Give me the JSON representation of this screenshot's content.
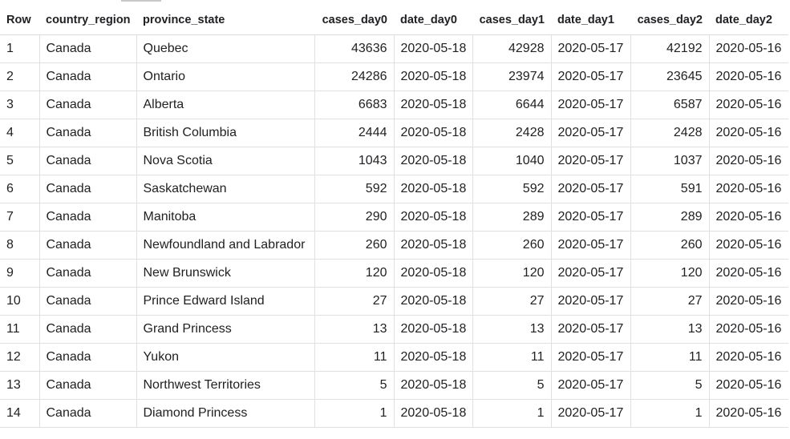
{
  "table": {
    "columns": [
      "Row",
      "country_region",
      "province_state",
      "cases_day0",
      "date_day0",
      "cases_day1",
      "date_day1",
      "cases_day2",
      "date_day2"
    ],
    "rows": [
      [
        "1",
        "Canada",
        "Quebec",
        "43636",
        "2020-05-18",
        "42928",
        "2020-05-17",
        "42192",
        "2020-05-16"
      ],
      [
        "2",
        "Canada",
        "Ontario",
        "24286",
        "2020-05-18",
        "23974",
        "2020-05-17",
        "23645",
        "2020-05-16"
      ],
      [
        "3",
        "Canada",
        "Alberta",
        "6683",
        "2020-05-18",
        "6644",
        "2020-05-17",
        "6587",
        "2020-05-16"
      ],
      [
        "4",
        "Canada",
        "British Columbia",
        "2444",
        "2020-05-18",
        "2428",
        "2020-05-17",
        "2428",
        "2020-05-16"
      ],
      [
        "5",
        "Canada",
        "Nova Scotia",
        "1043",
        "2020-05-18",
        "1040",
        "2020-05-17",
        "1037",
        "2020-05-16"
      ],
      [
        "6",
        "Canada",
        "Saskatchewan",
        "592",
        "2020-05-18",
        "592",
        "2020-05-17",
        "591",
        "2020-05-16"
      ],
      [
        "7",
        "Canada",
        "Manitoba",
        "290",
        "2020-05-18",
        "289",
        "2020-05-17",
        "289",
        "2020-05-16"
      ],
      [
        "8",
        "Canada",
        "Newfoundland and Labrador",
        "260",
        "2020-05-18",
        "260",
        "2020-05-17",
        "260",
        "2020-05-16"
      ],
      [
        "9",
        "Canada",
        "New Brunswick",
        "120",
        "2020-05-18",
        "120",
        "2020-05-17",
        "120",
        "2020-05-16"
      ],
      [
        "10",
        "Canada",
        "Prince Edward Island",
        "27",
        "2020-05-18",
        "27",
        "2020-05-17",
        "27",
        "2020-05-16"
      ],
      [
        "11",
        "Canada",
        "Grand Princess",
        "13",
        "2020-05-18",
        "13",
        "2020-05-17",
        "13",
        "2020-05-16"
      ],
      [
        "12",
        "Canada",
        "Yukon",
        "11",
        "2020-05-18",
        "11",
        "2020-05-17",
        "11",
        "2020-05-16"
      ],
      [
        "13",
        "Canada",
        "Northwest Territories",
        "5",
        "2020-05-18",
        "5",
        "2020-05-17",
        "5",
        "2020-05-16"
      ],
      [
        "14",
        "Canada",
        "Diamond Princess",
        "1",
        "2020-05-18",
        "1",
        "2020-05-17",
        "1",
        "2020-05-16"
      ]
    ]
  }
}
